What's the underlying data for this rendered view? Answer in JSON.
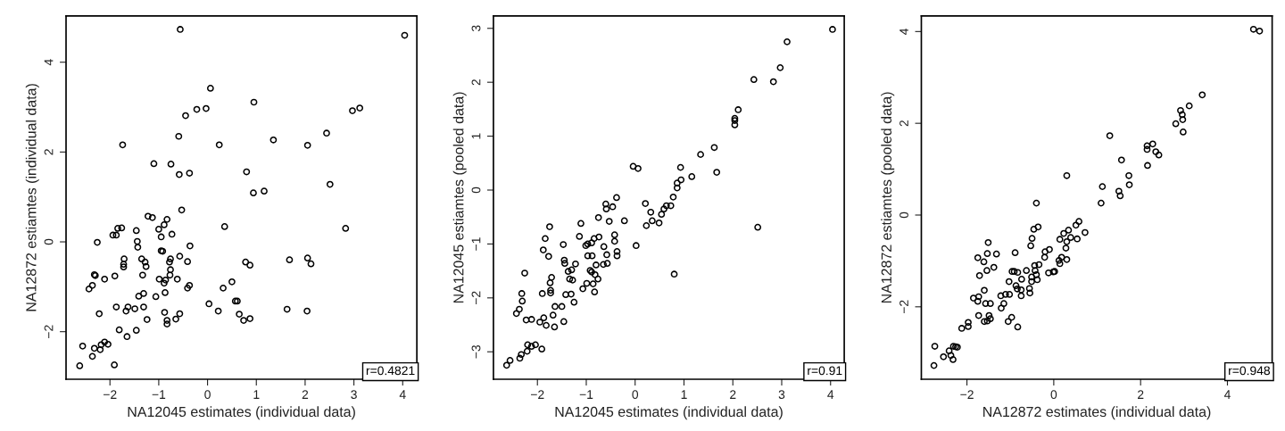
{
  "chart_data": [
    {
      "type": "scatter",
      "xlabel": "NA12045 estimates (individual data)",
      "ylabel": "NA12872 estiamtes (individual data)",
      "marker": "circle",
      "annotations": [
        "r=0.4821"
      ],
      "xlim": [
        -2.9,
        4.29
      ],
      "ylim": [
        -3.06,
        5.03
      ],
      "xticks": [
        -2,
        -1,
        0,
        1,
        2,
        3,
        4
      ],
      "yticks": [
        -2,
        0,
        2,
        4
      ],
      "series": [
        {
          "color": "#000000",
          "x": [
            -0.56,
            4.04,
            0.06,
            0.95,
            -0.22,
            -0.03,
            -0.45,
            2.97,
            3.12,
            -0.59,
            -1.74,
            0.24,
            1.35,
            2.05,
            2.44,
            -1.1,
            -0.75,
            -0.58,
            -0.37,
            0.8,
            0.94,
            1.16,
            2.51,
            -0.53,
            -1.22,
            -1.13,
            -0.83,
            -0.89,
            -1.0,
            0.35,
            2.83,
            -1.84,
            -1.76,
            -1.94,
            -1.87,
            -1.46,
            -0.95,
            -0.73,
            -2.26,
            -1.44,
            -1.43,
            -0.36,
            -0.95,
            -0.92,
            -1.71,
            -1.35,
            -1.28,
            -0.76,
            -0.57,
            -0.41,
            -0.78,
            -1.72,
            -1.72,
            -1.26,
            0.78,
            0.87,
            1.68,
            2.05,
            2.12,
            -2.32,
            -2.3,
            -1.9,
            -1.33,
            -0.76,
            -0.77,
            -2.11,
            -0.99,
            -0.86,
            -0.89,
            -0.62,
            0.5,
            -2.36,
            -2.43,
            -0.37,
            -0.41,
            0.32,
            -1.31,
            -1.41,
            -1.06,
            -0.87,
            -1.87,
            -1.63,
            -1.67,
            -1.49,
            -1.31,
            0.03,
            0.57,
            0.61,
            0.22,
            -2.22,
            -1.24,
            -0.88,
            -0.57,
            -0.65,
            -0.83,
            -0.83,
            0.65,
            0.74,
            0.87,
            1.63,
            2.04,
            -1.81,
            -1.46,
            -1.65,
            -2.56,
            -2.32,
            -2.18,
            -2.11,
            -2.04,
            -2.2,
            -2.36,
            -2.62,
            -1.91
          ],
          "values": [
            4.73,
            4.6,
            3.42,
            3.11,
            2.95,
            2.97,
            2.81,
            2.92,
            2.98,
            2.35,
            2.16,
            2.16,
            2.27,
            2.15,
            2.42,
            1.74,
            1.73,
            1.5,
            1.53,
            1.56,
            1.09,
            1.13,
            1.28,
            0.71,
            0.57,
            0.54,
            0.5,
            0.38,
            0.28,
            0.34,
            0.3,
            0.3,
            0.31,
            0.15,
            0.15,
            0.25,
            0.11,
            0.17,
            -0.01,
            0.01,
            -0.12,
            -0.09,
            -0.2,
            -0.21,
            -0.38,
            -0.38,
            -0.45,
            -0.38,
            -0.32,
            -0.44,
            -0.45,
            -0.5,
            -0.56,
            -0.55,
            -0.45,
            -0.52,
            -0.4,
            -0.36,
            -0.49,
            -0.73,
            -0.75,
            -0.76,
            -0.74,
            -0.62,
            -0.74,
            -0.83,
            -0.83,
            -0.85,
            -0.92,
            -0.83,
            -0.89,
            -0.97,
            -1.05,
            -0.97,
            -1.03,
            -1.03,
            -1.15,
            -1.21,
            -1.22,
            -1.13,
            -1.45,
            -1.45,
            -1.54,
            -1.49,
            -1.45,
            -1.38,
            -1.32,
            -1.32,
            -1.54,
            -1.6,
            -1.73,
            -1.57,
            -1.6,
            -1.72,
            -1.75,
            -1.83,
            -1.61,
            -1.75,
            -1.71,
            -1.5,
            -1.54,
            -1.96,
            -1.97,
            -2.11,
            -2.32,
            -2.37,
            -2.29,
            -2.23,
            -2.28,
            -2.4,
            -2.55,
            -2.76,
            -2.74
          ]
        }
      ]
    },
    {
      "type": "scatter",
      "xlabel": "NA12045 estimates (individual data)",
      "ylabel": "NA12045 estiamtes (pooled data)",
      "marker": "circle",
      "annotations": [
        "r=0.91"
      ],
      "xlim": [
        -2.9,
        4.28
      ],
      "ylim": [
        -3.51,
        3.23
      ],
      "xticks": [
        -2,
        -1,
        0,
        1,
        2,
        3,
        4
      ],
      "yticks": [
        -3,
        -2,
        -1,
        0,
        1,
        2,
        3
      ],
      "series": [
        {
          "color": "#000000",
          "x": [
            4.04,
            3.11,
            2.97,
            2.43,
            2.83,
            2.11,
            2.04,
            2.04,
            2.04,
            1.62,
            1.34,
            1.67,
            -0.04,
            0.06,
            0.93,
            1.16,
            0.94,
            0.86,
            0.86,
            0.78,
            0.73,
            0.64,
            0.59,
            0.54,
            0.49,
            0.35,
            0.32,
            0.21,
            0.23,
            2.51,
            -0.38,
            -0.46,
            -0.6,
            -0.59,
            -0.22,
            -0.53,
            -0.75,
            -1.11,
            -1.75,
            -1.14,
            -0.42,
            -0.42,
            -0.84,
            -0.74,
            0.02,
            -1.84,
            -1.47,
            -1.01,
            -0.97,
            -0.89,
            -0.64,
            -1.88,
            -1.77,
            -0.97,
            -0.88,
            -0.37,
            -0.37,
            -0.58,
            -1.45,
            -1.44,
            -1.22,
            -0.57,
            -0.65,
            -0.8,
            -1.3,
            -1.37,
            -0.92,
            -0.89,
            -0.82,
            -2.26,
            0.8,
            -1.71,
            -1.34,
            -1.28,
            -0.76,
            -1.74,
            -0.99,
            -0.86,
            -0.83,
            -1.07,
            -1.73,
            -1.73,
            -1.9,
            -1.42,
            -1.31,
            -2.32,
            -2.31,
            -1.25,
            -1.64,
            -1.5,
            -2.37,
            -2.43,
            -2.23,
            -2.12,
            -1.68,
            -1.87,
            -1.95,
            -1.82,
            -1.65,
            -1.46,
            -2.2,
            -2.12,
            -2.04,
            -1.91,
            -2.21,
            -2.33,
            -2.36,
            -2.56,
            -2.63
          ],
          "values": [
            2.98,
            2.75,
            2.27,
            2.05,
            2.01,
            1.49,
            1.33,
            1.29,
            1.21,
            0.79,
            0.66,
            0.33,
            0.44,
            0.4,
            0.42,
            0.25,
            0.19,
            0.13,
            0.04,
            -0.13,
            -0.29,
            -0.29,
            -0.35,
            -0.45,
            -0.61,
            -0.57,
            -0.41,
            -0.25,
            -0.66,
            -0.69,
            -0.14,
            -0.31,
            -0.26,
            -0.35,
            -0.57,
            -0.58,
            -0.51,
            -0.62,
            -0.68,
            -0.86,
            -0.83,
            -0.95,
            -0.9,
            -0.87,
            -1.03,
            -0.9,
            -1.01,
            -1.03,
            -1.0,
            -0.98,
            -1.05,
            -1.11,
            -1.23,
            -1.22,
            -1.22,
            -1.14,
            -1.22,
            -1.2,
            -1.3,
            -1.36,
            -1.37,
            -1.36,
            -1.38,
            -1.39,
            -1.48,
            -1.51,
            -1.49,
            -1.52,
            -1.57,
            -1.54,
            -1.56,
            -1.62,
            -1.65,
            -1.67,
            -1.65,
            -1.72,
            -1.73,
            -1.74,
            -1.89,
            -1.83,
            -1.86,
            -1.91,
            -1.92,
            -1.94,
            -1.93,
            -1.92,
            -2.06,
            -2.08,
            -2.16,
            -2.16,
            -2.21,
            -2.29,
            -2.41,
            -2.4,
            -2.32,
            -2.37,
            -2.45,
            -2.51,
            -2.54,
            -2.44,
            -2.87,
            -2.9,
            -2.87,
            -2.95,
            -2.99,
            -3.05,
            -3.12,
            -3.16,
            -3.25
          ]
        }
      ]
    },
    {
      "type": "scatter",
      "xlabel": "NA12872 estimates (individual data)",
      "ylabel": "NA12872 estiamtes (pooled data)",
      "marker": "circle",
      "annotations": [
        "r=0.948"
      ],
      "xlim": [
        -3.05,
        5.03
      ],
      "ylim": [
        -3.58,
        4.34
      ],
      "xticks": [
        -2,
        0,
        2,
        4
      ],
      "yticks": [
        -2,
        0,
        2,
        4
      ],
      "series": [
        {
          "color": "#000000",
          "x": [
            4.6,
            4.74,
            3.42,
            3.12,
            2.92,
            2.96,
            2.97,
            2.81,
            2.98,
            1.29,
            2.15,
            2.28,
            2.15,
            2.35,
            2.42,
            2.16,
            1.56,
            1.73,
            1.74,
            0.3,
            1.12,
            1.5,
            1.53,
            1.09,
            -0.4,
            0.58,
            0.51,
            0.72,
            0.34,
            0.23,
            0.39,
            0.54,
            0.14,
            0.3,
            0.28,
            -0.36,
            -0.46,
            -0.5,
            -0.53,
            -0.1,
            -0.2,
            -0.21,
            0.18,
            0.12,
            0.3,
            0.14,
            -0.34,
            -0.44,
            -0.63,
            -0.43,
            -0.4,
            -0.51,
            -0.38,
            -0.51,
            -0.12,
            -0.01,
            0.02,
            -0.89,
            -1.51,
            -1.53,
            -1.32,
            -1.75,
            -1.61,
            -1.38,
            -1.54,
            -1.71,
            -0.96,
            -0.91,
            -0.83,
            -0.74,
            -1.03,
            -0.87,
            -0.84,
            -0.75,
            -0.75,
            -0.56,
            -0.55,
            -1.6,
            -1.22,
            -1.11,
            -1.02,
            -1.15,
            -1.21,
            -1.85,
            -1.73,
            -1.75,
            -1.57,
            -1.46,
            -1.73,
            -1.49,
            -1.46,
            -1.6,
            -1.53,
            -0.97,
            -1.05,
            -0.83,
            -1.97,
            -1.97,
            -2.12,
            -2.74,
            -2.31,
            -2.26,
            -2.22,
            -2.41,
            -2.37,
            -2.54,
            -2.32,
            -2.76
          ],
          "values": [
            4.05,
            4.01,
            2.62,
            2.38,
            2.28,
            2.19,
            2.08,
            1.99,
            1.81,
            1.73,
            1.51,
            1.55,
            1.43,
            1.38,
            1.31,
            1.08,
            1.2,
            0.86,
            0.66,
            0.86,
            0.62,
            0.52,
            0.42,
            0.26,
            0.26,
            -0.14,
            -0.22,
            -0.38,
            -0.33,
            -0.4,
            -0.49,
            -0.52,
            -0.53,
            -0.58,
            -0.72,
            -0.26,
            -0.31,
            -0.51,
            -0.67,
            -0.75,
            -0.8,
            -0.92,
            -0.92,
            -0.99,
            -0.97,
            -1.06,
            -1.08,
            -1.1,
            -1.21,
            -1.21,
            -1.3,
            -1.35,
            -1.41,
            -1.45,
            -1.26,
            -1.24,
            -1.23,
            -0.82,
            -0.6,
            -0.84,
            -0.85,
            -0.93,
            -1.02,
            -1.14,
            -1.21,
            -1.32,
            -1.23,
            -1.23,
            -1.25,
            -1.4,
            -1.45,
            -1.54,
            -1.61,
            -1.63,
            -1.76,
            -1.6,
            -1.7,
            -1.64,
            -1.76,
            -1.73,
            -1.73,
            -1.93,
            -2.03,
            -1.81,
            -1.78,
            -1.88,
            -1.93,
            -1.93,
            -2.19,
            -2.19,
            -2.26,
            -2.32,
            -2.31,
            -2.23,
            -2.32,
            -2.44,
            -2.34,
            -2.43,
            -2.47,
            -2.86,
            -2.86,
            -2.87,
            -2.88,
            -2.96,
            -3.06,
            -3.09,
            -3.15,
            -3.28
          ]
        }
      ]
    }
  ]
}
